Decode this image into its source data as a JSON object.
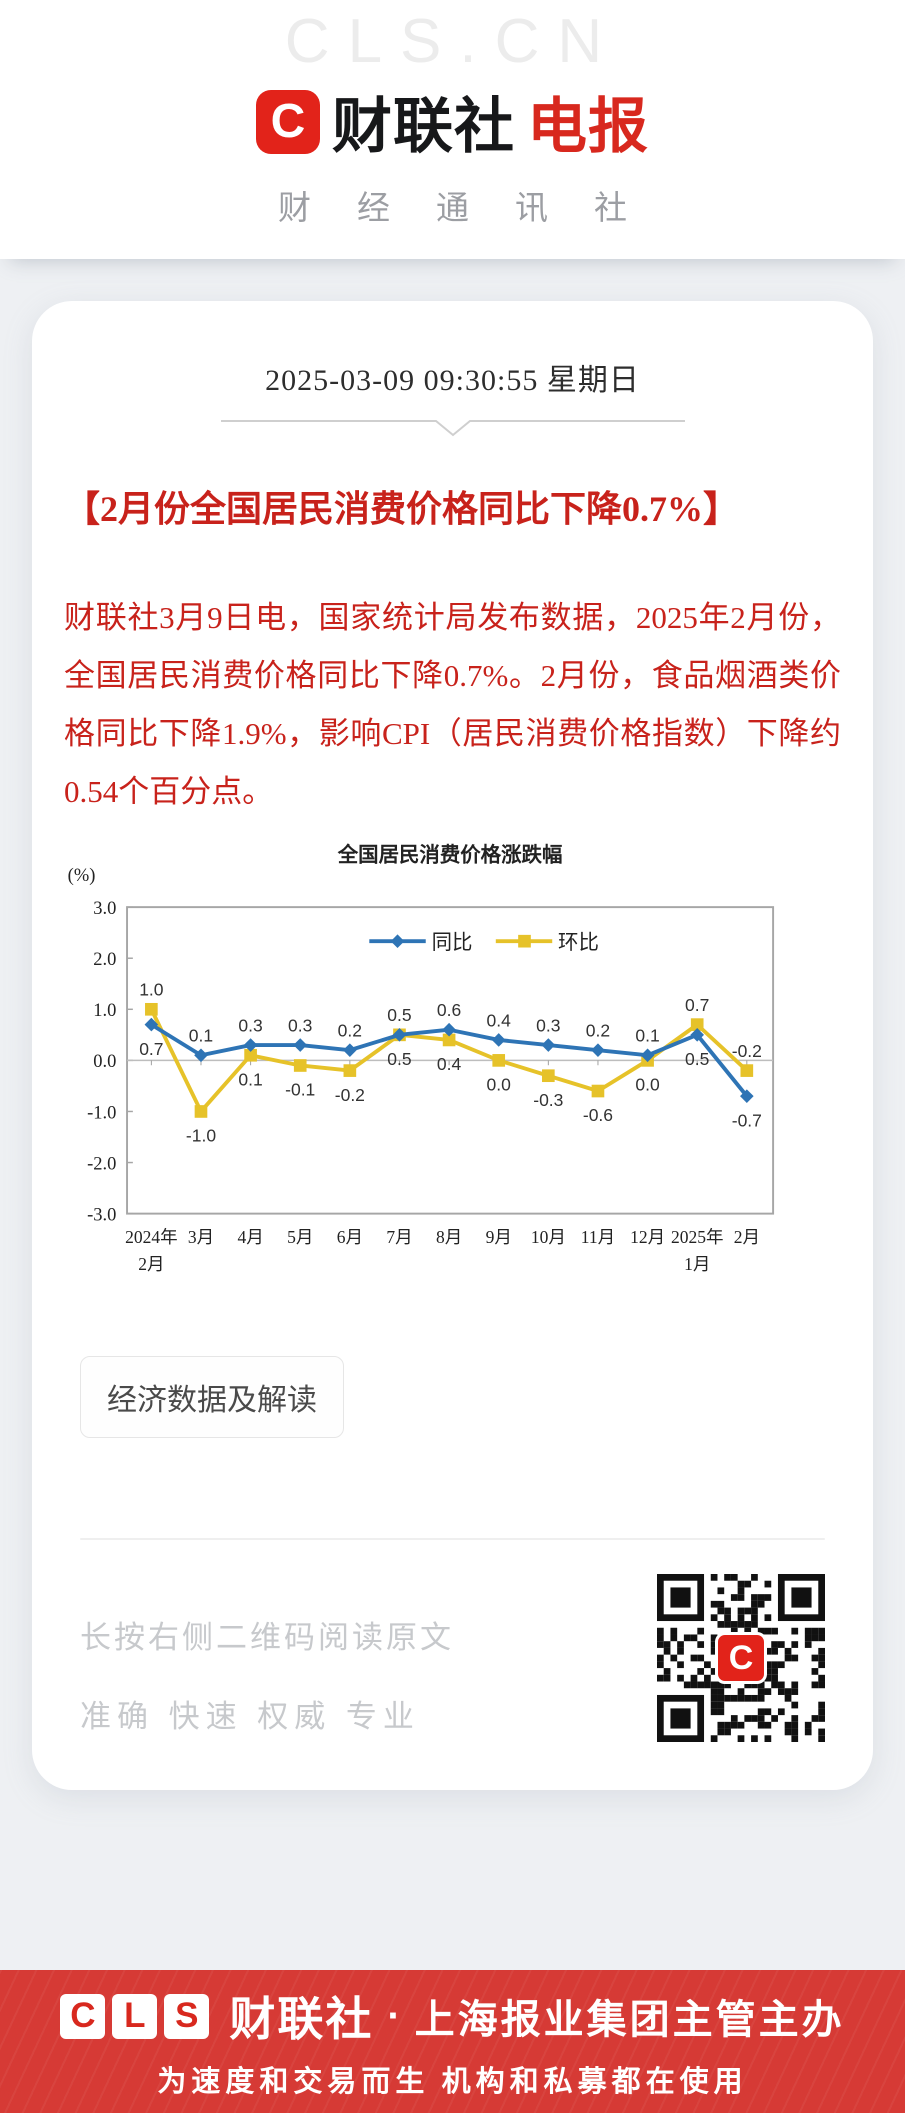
{
  "watermark": "CLS.CN",
  "header": {
    "logo_c": "C",
    "logo_name": "财联社",
    "logo_suffix": "电报",
    "tagline": "财经通讯社"
  },
  "article": {
    "datetime": "2025-03-09 09:30:55 星期日",
    "headline": "【2月份全国居民消费价格同比下降0.7%】",
    "body": "财联社3月9日电，国家统计局发布数据，2025年2月份，全国居民消费价格同比下降0.7%。2月份，食品烟酒类价格同比下降1.9%，影响CPI（居民消费价格指数）下降约0.54个百分点。",
    "tag": "经济数据及解读"
  },
  "chart_data": {
    "type": "line",
    "title": "全国居民消费价格涨跌幅",
    "unit_label": "(%)",
    "categories": [
      "2024年\n2月",
      "3月",
      "4月",
      "5月",
      "6月",
      "7月",
      "8月",
      "9月",
      "10月",
      "11月",
      "12月",
      "2025年\n1月",
      "2月"
    ],
    "series": [
      {
        "name": "同比",
        "color": "#2e74b5",
        "marker": "diamond",
        "values": [
          0.7,
          0.1,
          0.3,
          0.3,
          0.2,
          0.5,
          0.6,
          0.4,
          0.3,
          0.2,
          0.1,
          0.5,
          -0.7
        ],
        "label_side": [
          "below",
          "above",
          "above",
          "above",
          "above",
          "above",
          "above",
          "above",
          "above",
          "above",
          "above",
          "below",
          "below"
        ]
      },
      {
        "name": "环比",
        "color": "#e6c229",
        "marker": "square",
        "values": [
          1.0,
          -1.0,
          0.1,
          -0.1,
          -0.2,
          0.5,
          0.4,
          0.0,
          -0.3,
          -0.6,
          0.0,
          0.7,
          -0.2
        ],
        "label_side": [
          "above",
          "below",
          "below",
          "below",
          "below",
          "below",
          "below",
          "below",
          "below",
          "below",
          "below",
          "above",
          "above"
        ]
      }
    ],
    "ylim": [
      -3.0,
      3.0
    ],
    "yticks": [
      3.0,
      2.0,
      1.0,
      0.0,
      -1.0,
      -2.0,
      -3.0
    ],
    "grid": false,
    "legend_position": "inside-top-center"
  },
  "footer": {
    "hint_line1": "长按右侧二维码阅读原文",
    "hint_line2": "准确 快速 权威 专业",
    "qr_logo": "C"
  },
  "bottom_bar": {
    "cls_letters": [
      "C",
      "L",
      "S"
    ],
    "brand": "财联社",
    "separator": "·",
    "org": "上海报业集团主管主办",
    "slogan": "为速度和交易而生 机构和私募都在使用"
  },
  "colors": {
    "brand_red": "#e2231a",
    "article_red": "#c8221b",
    "bar_red": "#d63a35",
    "series_yoy_blue": "#2e74b5",
    "series_mom_yellow": "#e6c229"
  }
}
